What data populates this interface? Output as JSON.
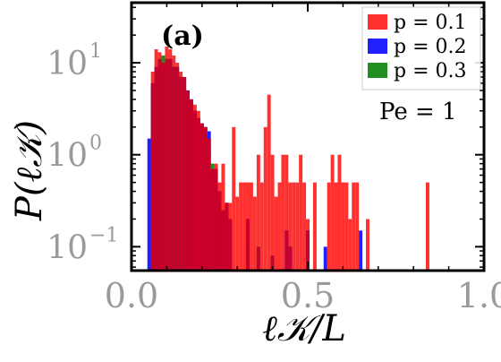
{
  "chart_data": {
    "type": "bar",
    "panel_label": "(a)",
    "annotation": "Pe = 1",
    "xlabel": "ℓ𝒦/L",
    "ylabel": "P(ℓ𝒦)",
    "xlim": [
      0.0,
      1.0
    ],
    "ylim": [
      0.055,
      45
    ],
    "yscale": "log",
    "xticks": [
      0.0,
      0.5,
      1.0
    ],
    "xtick_labels": [
      "0.0",
      "0.5",
      "1.0"
    ],
    "yticks": [
      0.1,
      1,
      10
    ],
    "ytick_labels": [
      "10",
      "10",
      "10"
    ],
    "ytick_exponents": [
      "−1",
      "0",
      "1"
    ],
    "grid": false,
    "legend_position": "top-right",
    "bin_width": 0.01,
    "colors": {
      "p=0.1": "#ff3030",
      "p=0.2": "#2020ff",
      "p=0.3": "#209020",
      "overlap": "#c8002a"
    },
    "series": [
      {
        "name": "p = 0.1",
        "color": "#ff3030",
        "bins": [
          [
            0.06,
            8
          ],
          [
            0.07,
            14
          ],
          [
            0.08,
            13
          ],
          [
            0.09,
            10
          ],
          [
            0.1,
            15
          ],
          [
            0.11,
            14
          ],
          [
            0.12,
            12
          ],
          [
            0.13,
            10
          ],
          [
            0.14,
            8
          ],
          [
            0.15,
            7
          ],
          [
            0.16,
            5
          ],
          [
            0.17,
            4
          ],
          [
            0.18,
            3.5
          ],
          [
            0.19,
            3
          ],
          [
            0.2,
            2.2
          ],
          [
            0.21,
            2
          ],
          [
            0.22,
            1.5
          ],
          [
            0.23,
            0.7
          ],
          [
            0.24,
            0.8
          ],
          [
            0.25,
            0.5
          ],
          [
            0.26,
            0.8
          ],
          [
            0.27,
            0.3
          ],
          [
            0.28,
            0.3
          ],
          [
            0.29,
            2.0
          ],
          [
            0.3,
            0.35
          ],
          [
            0.31,
            0.5
          ],
          [
            0.32,
            0.5
          ],
          [
            0.33,
            0.5
          ],
          [
            0.34,
            0.5
          ],
          [
            0.35,
            0.35
          ],
          [
            0.36,
            1.0
          ],
          [
            0.37,
            0.5
          ],
          [
            0.38,
            2.0
          ],
          [
            0.39,
            4.5
          ],
          [
            0.4,
            1.0
          ],
          [
            0.41,
            0.35
          ],
          [
            0.42,
            0.5
          ],
          [
            0.43,
            1.0
          ],
          [
            0.44,
            1.0
          ],
          [
            0.45,
            0.5
          ],
          [
            0.46,
            0.5
          ],
          [
            0.47,
            0.5
          ],
          [
            0.48,
            1.0
          ],
          [
            0.49,
            0.5
          ],
          [
            0.5,
            0.2
          ],
          [
            0.52,
            0.5
          ],
          [
            0.56,
            0.5
          ],
          [
            0.57,
            1.0
          ],
          [
            0.58,
            0.5
          ],
          [
            0.59,
            1.0
          ],
          [
            0.6,
            0.5
          ],
          [
            0.61,
            0.5
          ],
          [
            0.62,
            0.2
          ],
          [
            0.63,
            0.5
          ],
          [
            0.64,
            0.5
          ],
          [
            0.67,
            0.2
          ],
          [
            0.84,
            0.5
          ]
        ]
      },
      {
        "name": "p = 0.2",
        "color": "#2020ff",
        "bins": [
          [
            0.05,
            1.5
          ],
          [
            0.06,
            6
          ],
          [
            0.07,
            9
          ],
          [
            0.08,
            10
          ],
          [
            0.09,
            9
          ],
          [
            0.1,
            9
          ],
          [
            0.11,
            11
          ],
          [
            0.12,
            9
          ],
          [
            0.13,
            9
          ],
          [
            0.14,
            7
          ],
          [
            0.15,
            7
          ],
          [
            0.16,
            5
          ],
          [
            0.17,
            4
          ],
          [
            0.18,
            3
          ],
          [
            0.19,
            2.5
          ],
          [
            0.2,
            2.2
          ],
          [
            0.21,
            2
          ],
          [
            0.22,
            1.8
          ],
          [
            0.23,
            0.7
          ],
          [
            0.24,
            0.7
          ],
          [
            0.25,
            0.4
          ],
          [
            0.27,
            0.3
          ],
          [
            0.33,
            0.2
          ],
          [
            0.44,
            0.15
          ],
          [
            0.45,
            0.1
          ],
          [
            0.5,
            0.15
          ],
          [
            0.55,
            0.1
          ],
          [
            0.65,
            0.15
          ]
        ]
      },
      {
        "name": "p = 0.3",
        "color": "#209020",
        "bins": [
          [
            0.07,
            8
          ],
          [
            0.08,
            11
          ],
          [
            0.09,
            12
          ],
          [
            0.1,
            11
          ],
          [
            0.11,
            10
          ],
          [
            0.12,
            9
          ],
          [
            0.13,
            8
          ],
          [
            0.14,
            7
          ],
          [
            0.15,
            6
          ],
          [
            0.16,
            4
          ],
          [
            0.17,
            3
          ],
          [
            0.18,
            2.5
          ],
          [
            0.19,
            2
          ],
          [
            0.2,
            2
          ],
          [
            0.21,
            1.5
          ],
          [
            0.22,
            1.2
          ],
          [
            0.23,
            0.8
          ],
          [
            0.24,
            0.6
          ],
          [
            0.25,
            0.3
          ],
          [
            0.26,
            0.25
          ],
          [
            0.27,
            0.2
          ],
          [
            0.28,
            0.2
          ],
          [
            0.33,
            0.1
          ],
          [
            0.36,
            0.1
          ],
          [
            0.4,
            0.08
          ]
        ]
      }
    ]
  }
}
